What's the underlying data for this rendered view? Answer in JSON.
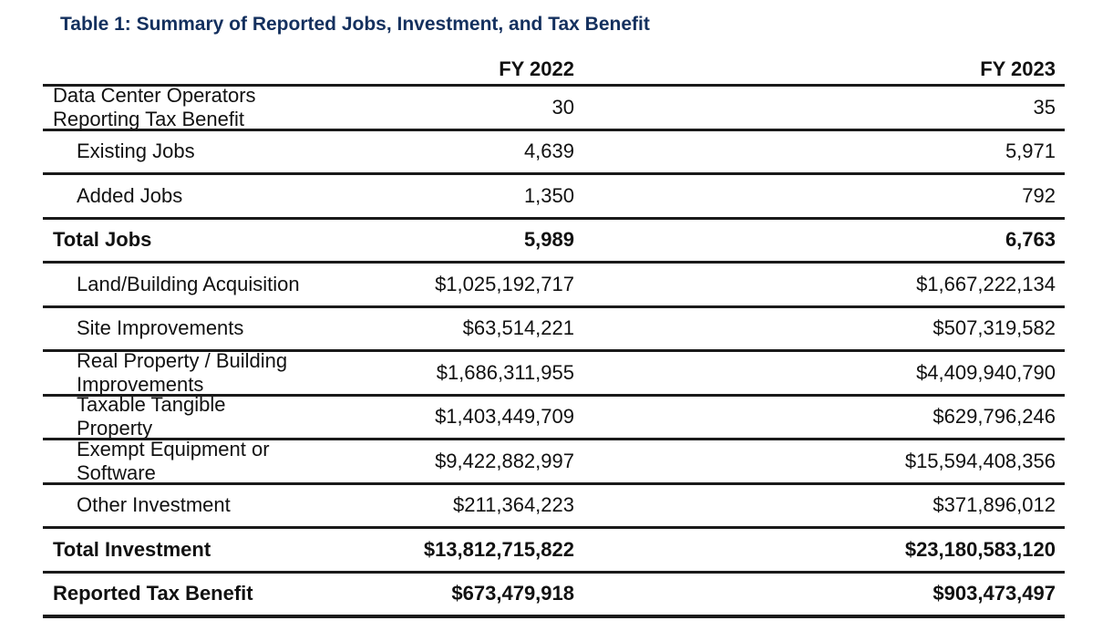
{
  "title": "Table 1: Summary of Reported Jobs, Investment, and Tax Benefit",
  "columns": [
    "FY 2022",
    "FY 2023"
  ],
  "rows": [
    {
      "label": "Data Center Operators Reporting Tax Benefit",
      "fy2022": "30",
      "fy2023": "35",
      "indent": false,
      "bold": false
    },
    {
      "label": "Existing Jobs",
      "fy2022": "4,639",
      "fy2023": "5,971",
      "indent": true,
      "bold": false
    },
    {
      "label": "Added Jobs",
      "fy2022": "1,350",
      "fy2023": "792",
      "indent": true,
      "bold": false
    },
    {
      "label": "Total Jobs",
      "fy2022": "5,989",
      "fy2023": "6,763",
      "indent": false,
      "bold": true
    },
    {
      "label": "Land/Building Acquisition",
      "fy2022": "$1,025,192,717",
      "fy2023": "$1,667,222,134",
      "indent": true,
      "bold": false
    },
    {
      "label": "Site Improvements",
      "fy2022": "$63,514,221",
      "fy2023": "$507,319,582",
      "indent": true,
      "bold": false
    },
    {
      "label": "Real Property / Building Improvements",
      "fy2022": "$1,686,311,955",
      "fy2023": "$4,409,940,790",
      "indent": true,
      "bold": false
    },
    {
      "label": "Taxable Tangible Property",
      "fy2022": "$1,403,449,709",
      "fy2023": "$629,796,246",
      "indent": true,
      "bold": false
    },
    {
      "label": "Exempt Equipment or Software",
      "fy2022": "$9,422,882,997",
      "fy2023": "$15,594,408,356",
      "indent": true,
      "bold": false
    },
    {
      "label": "Other Investment",
      "fy2022": "$211,364,223",
      "fy2023": "$371,896,012",
      "indent": true,
      "bold": false
    },
    {
      "label": "Total Investment",
      "fy2022": "$13,812,715,822",
      "fy2023": "$23,180,583,120",
      "indent": false,
      "bold": true
    },
    {
      "label": "Reported Tax Benefit",
      "fy2022": "$673,479,918",
      "fy2023": "$903,473,497",
      "indent": false,
      "bold": true
    }
  ]
}
